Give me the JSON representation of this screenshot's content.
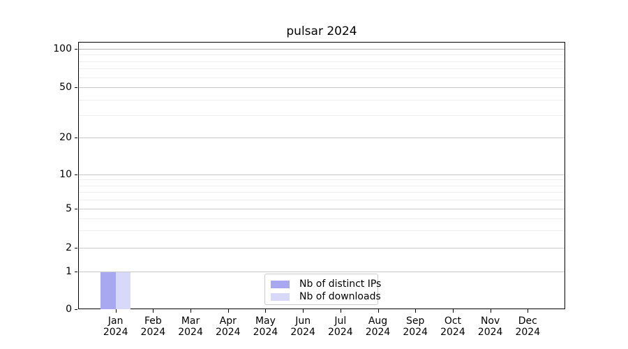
{
  "chart_data": {
    "type": "bar",
    "title": "pulsar 2024",
    "categories": [
      "Jan",
      "Feb",
      "Mar",
      "Apr",
      "May",
      "Jun",
      "Jul",
      "Aug",
      "Sep",
      "Oct",
      "Nov",
      "Dec"
    ],
    "x_tick_second_line": "2024",
    "series": [
      {
        "name": "Nb of distinct IPs",
        "color": "#a8a8f0",
        "values": [
          1,
          0,
          0,
          0,
          0,
          0,
          0,
          0,
          0,
          0,
          0,
          0
        ]
      },
      {
        "name": "Nb of downloads",
        "color": "#d8d8f8",
        "values": [
          1,
          0,
          0,
          0,
          0,
          0,
          0,
          0,
          0,
          0,
          0,
          0
        ]
      }
    ],
    "xlabel": "",
    "ylabel": "",
    "yscale": "symlog",
    "ylim": [
      0,
      100
    ],
    "yticks": [
      0,
      1,
      2,
      5,
      10,
      20,
      50,
      100
    ],
    "ytick_labels": [
      "0",
      "1",
      "2",
      "5",
      "10",
      "20",
      "50",
      "100"
    ],
    "minor_grid_values": [
      3,
      4,
      6,
      7,
      8,
      9,
      30,
      40,
      60,
      70,
      80,
      90
    ],
    "grid": "horizontal",
    "legend_position": "lower-center"
  },
  "colors": {
    "major_grid": "#c9c9c9",
    "minor_grid": "#ededed",
    "axis": "#000000",
    "legend_border": "#cccccc",
    "text": "#000000"
  }
}
